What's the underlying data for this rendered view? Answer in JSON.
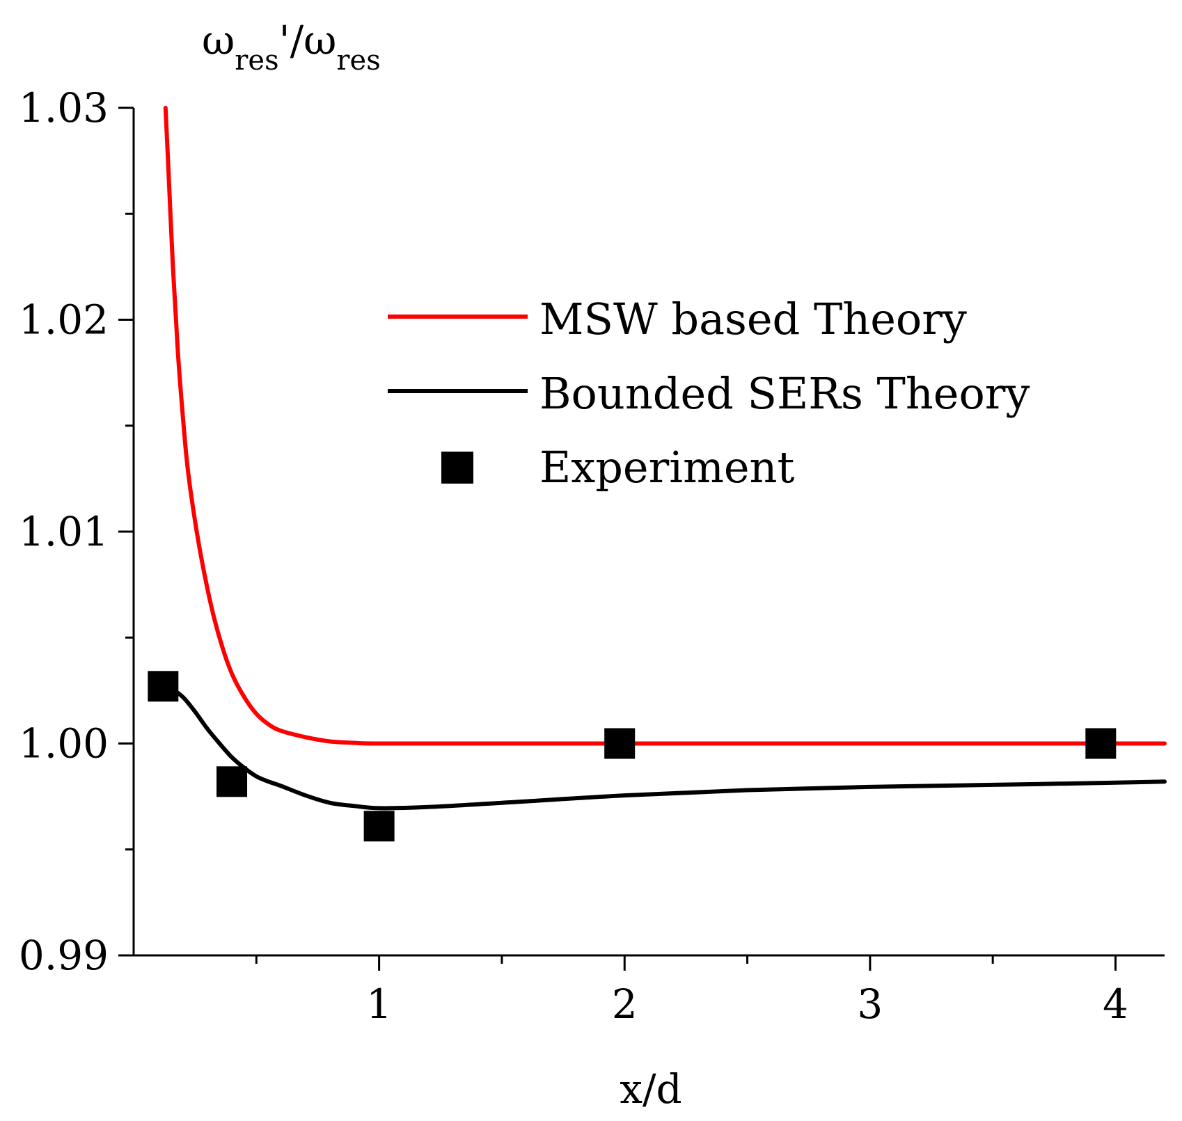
{
  "chart_data": {
    "type": "line",
    "title": "",
    "ylabel": {
      "base": "ω",
      "sub": "res",
      "prime": "'",
      "slash": "/",
      "base2": "ω",
      "sub2": "res"
    },
    "xlabel": "x/d",
    "xlim": [
      0.0,
      4.2
    ],
    "ylim": [
      0.99,
      1.03
    ],
    "x_major_ticks": [
      1,
      2,
      3,
      4
    ],
    "x_minor_ticks": [
      0.5,
      1.5,
      2.5,
      3.5
    ],
    "x_tick_labels": [
      "1",
      "2",
      "3",
      "4"
    ],
    "y_major_ticks": [
      0.99,
      1.0,
      1.01,
      1.02,
      1.03
    ],
    "y_minor_ticks": [
      0.995,
      1.005,
      1.015,
      1.025
    ],
    "y_tick_labels": [
      "0.99",
      "1.00",
      "1.01",
      "1.02",
      "1.03"
    ],
    "legend_position": "top-right",
    "series": [
      {
        "name": "MSW based Theory",
        "kind": "line",
        "color": "#ff0000",
        "x": [
          0.13,
          0.14,
          0.16,
          0.18,
          0.2,
          0.22,
          0.25,
          0.28,
          0.32,
          0.36,
          0.4,
          0.45,
          0.5,
          0.55,
          0.6,
          0.7,
          0.8,
          0.9,
          1.0,
          1.5,
          2.0,
          3.0,
          4.0,
          4.2
        ],
        "y": [
          1.03,
          1.0275,
          1.0225,
          1.0185,
          1.0155,
          1.013,
          1.0105,
          1.0085,
          1.0063,
          1.0046,
          1.0033,
          1.0022,
          1.0014,
          1.0009,
          1.0006,
          1.0003,
          1.0001,
          1.00003,
          1.0,
          1.0,
          1.0,
          1.0,
          1.0,
          1.0
        ]
      },
      {
        "name": "Bounded SERs Theory",
        "kind": "line",
        "color": "#000000",
        "x": [
          0.1,
          0.15,
          0.2,
          0.25,
          0.3,
          0.35,
          0.4,
          0.45,
          0.5,
          0.55,
          0.6,
          0.7,
          0.8,
          0.9,
          1.0,
          1.2,
          1.5,
          2.0,
          2.5,
          3.0,
          3.5,
          4.0,
          4.2
        ],
        "y": [
          1.0028,
          1.0026,
          1.0022,
          1.0015,
          1.0007,
          1.0,
          0.99935,
          0.99885,
          0.99845,
          0.9982,
          0.998,
          0.99755,
          0.9972,
          0.99705,
          0.99695,
          0.997,
          0.9972,
          0.99755,
          0.9978,
          0.99795,
          0.99805,
          0.99815,
          0.9982
        ]
      },
      {
        "name": "Experiment",
        "kind": "scatter",
        "color": "#000000",
        "x": [
          0.12,
          0.4,
          1.0,
          1.98,
          3.94
        ],
        "y": [
          1.0027,
          0.9982,
          0.9961,
          1.0,
          1.0
        ]
      }
    ]
  }
}
